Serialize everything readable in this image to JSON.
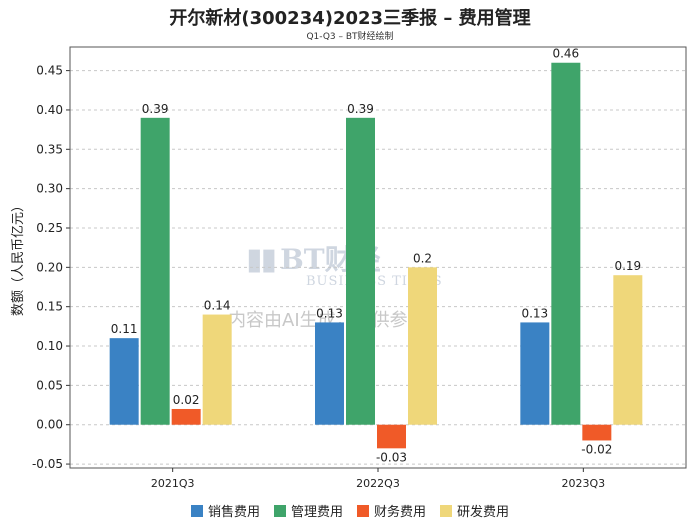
{
  "chart_data": {
    "type": "bar",
    "title": "开尔新材(300234)2023三季报 – 费用管理",
    "subtitle": "Q1-Q3 – BT财经绘制",
    "ylabel": "数额（人民币亿元）",
    "xlabel": "",
    "categories": [
      "2021Q3",
      "2022Q3",
      "2023Q3"
    ],
    "series": [
      {
        "name": "销售费用",
        "color": "#3a82c4",
        "values": [
          0.11,
          0.13,
          0.13
        ]
      },
      {
        "name": "管理费用",
        "color": "#3fa46a",
        "values": [
          0.39,
          0.39,
          0.46
        ]
      },
      {
        "name": "财务费用",
        "color": "#f05a28",
        "values": [
          0.02,
          -0.03,
          -0.02
        ]
      },
      {
        "name": "研发费用",
        "color": "#efd77a",
        "values": [
          0.14,
          0.2,
          0.19
        ]
      }
    ],
    "value_labels": [
      [
        "0.11",
        "0.13",
        "0.13"
      ],
      [
        "0.39",
        "0.39",
        "0.46"
      ],
      [
        "0.02",
        "-0.03",
        "-0.02"
      ],
      [
        "0.14",
        "0.2",
        "0.19"
      ]
    ],
    "yticks": [
      -0.05,
      0.0,
      0.05,
      0.1,
      0.15,
      0.2,
      0.25,
      0.3,
      0.35,
      0.4,
      0.45
    ],
    "ytick_labels": [
      "-0.05",
      "0.00",
      "0.05",
      "0.10",
      "0.15",
      "0.20",
      "0.25",
      "0.30",
      "0.35",
      "0.40",
      "0.45"
    ],
    "ylim": [
      -0.055,
      0.48
    ],
    "grid": true,
    "legend_position": "bottom"
  },
  "watermark": {
    "logo_text": "BT财经",
    "logo_sub": "BUSINESS TIMES",
    "notice": "内容由AI生成，仅供参考"
  }
}
